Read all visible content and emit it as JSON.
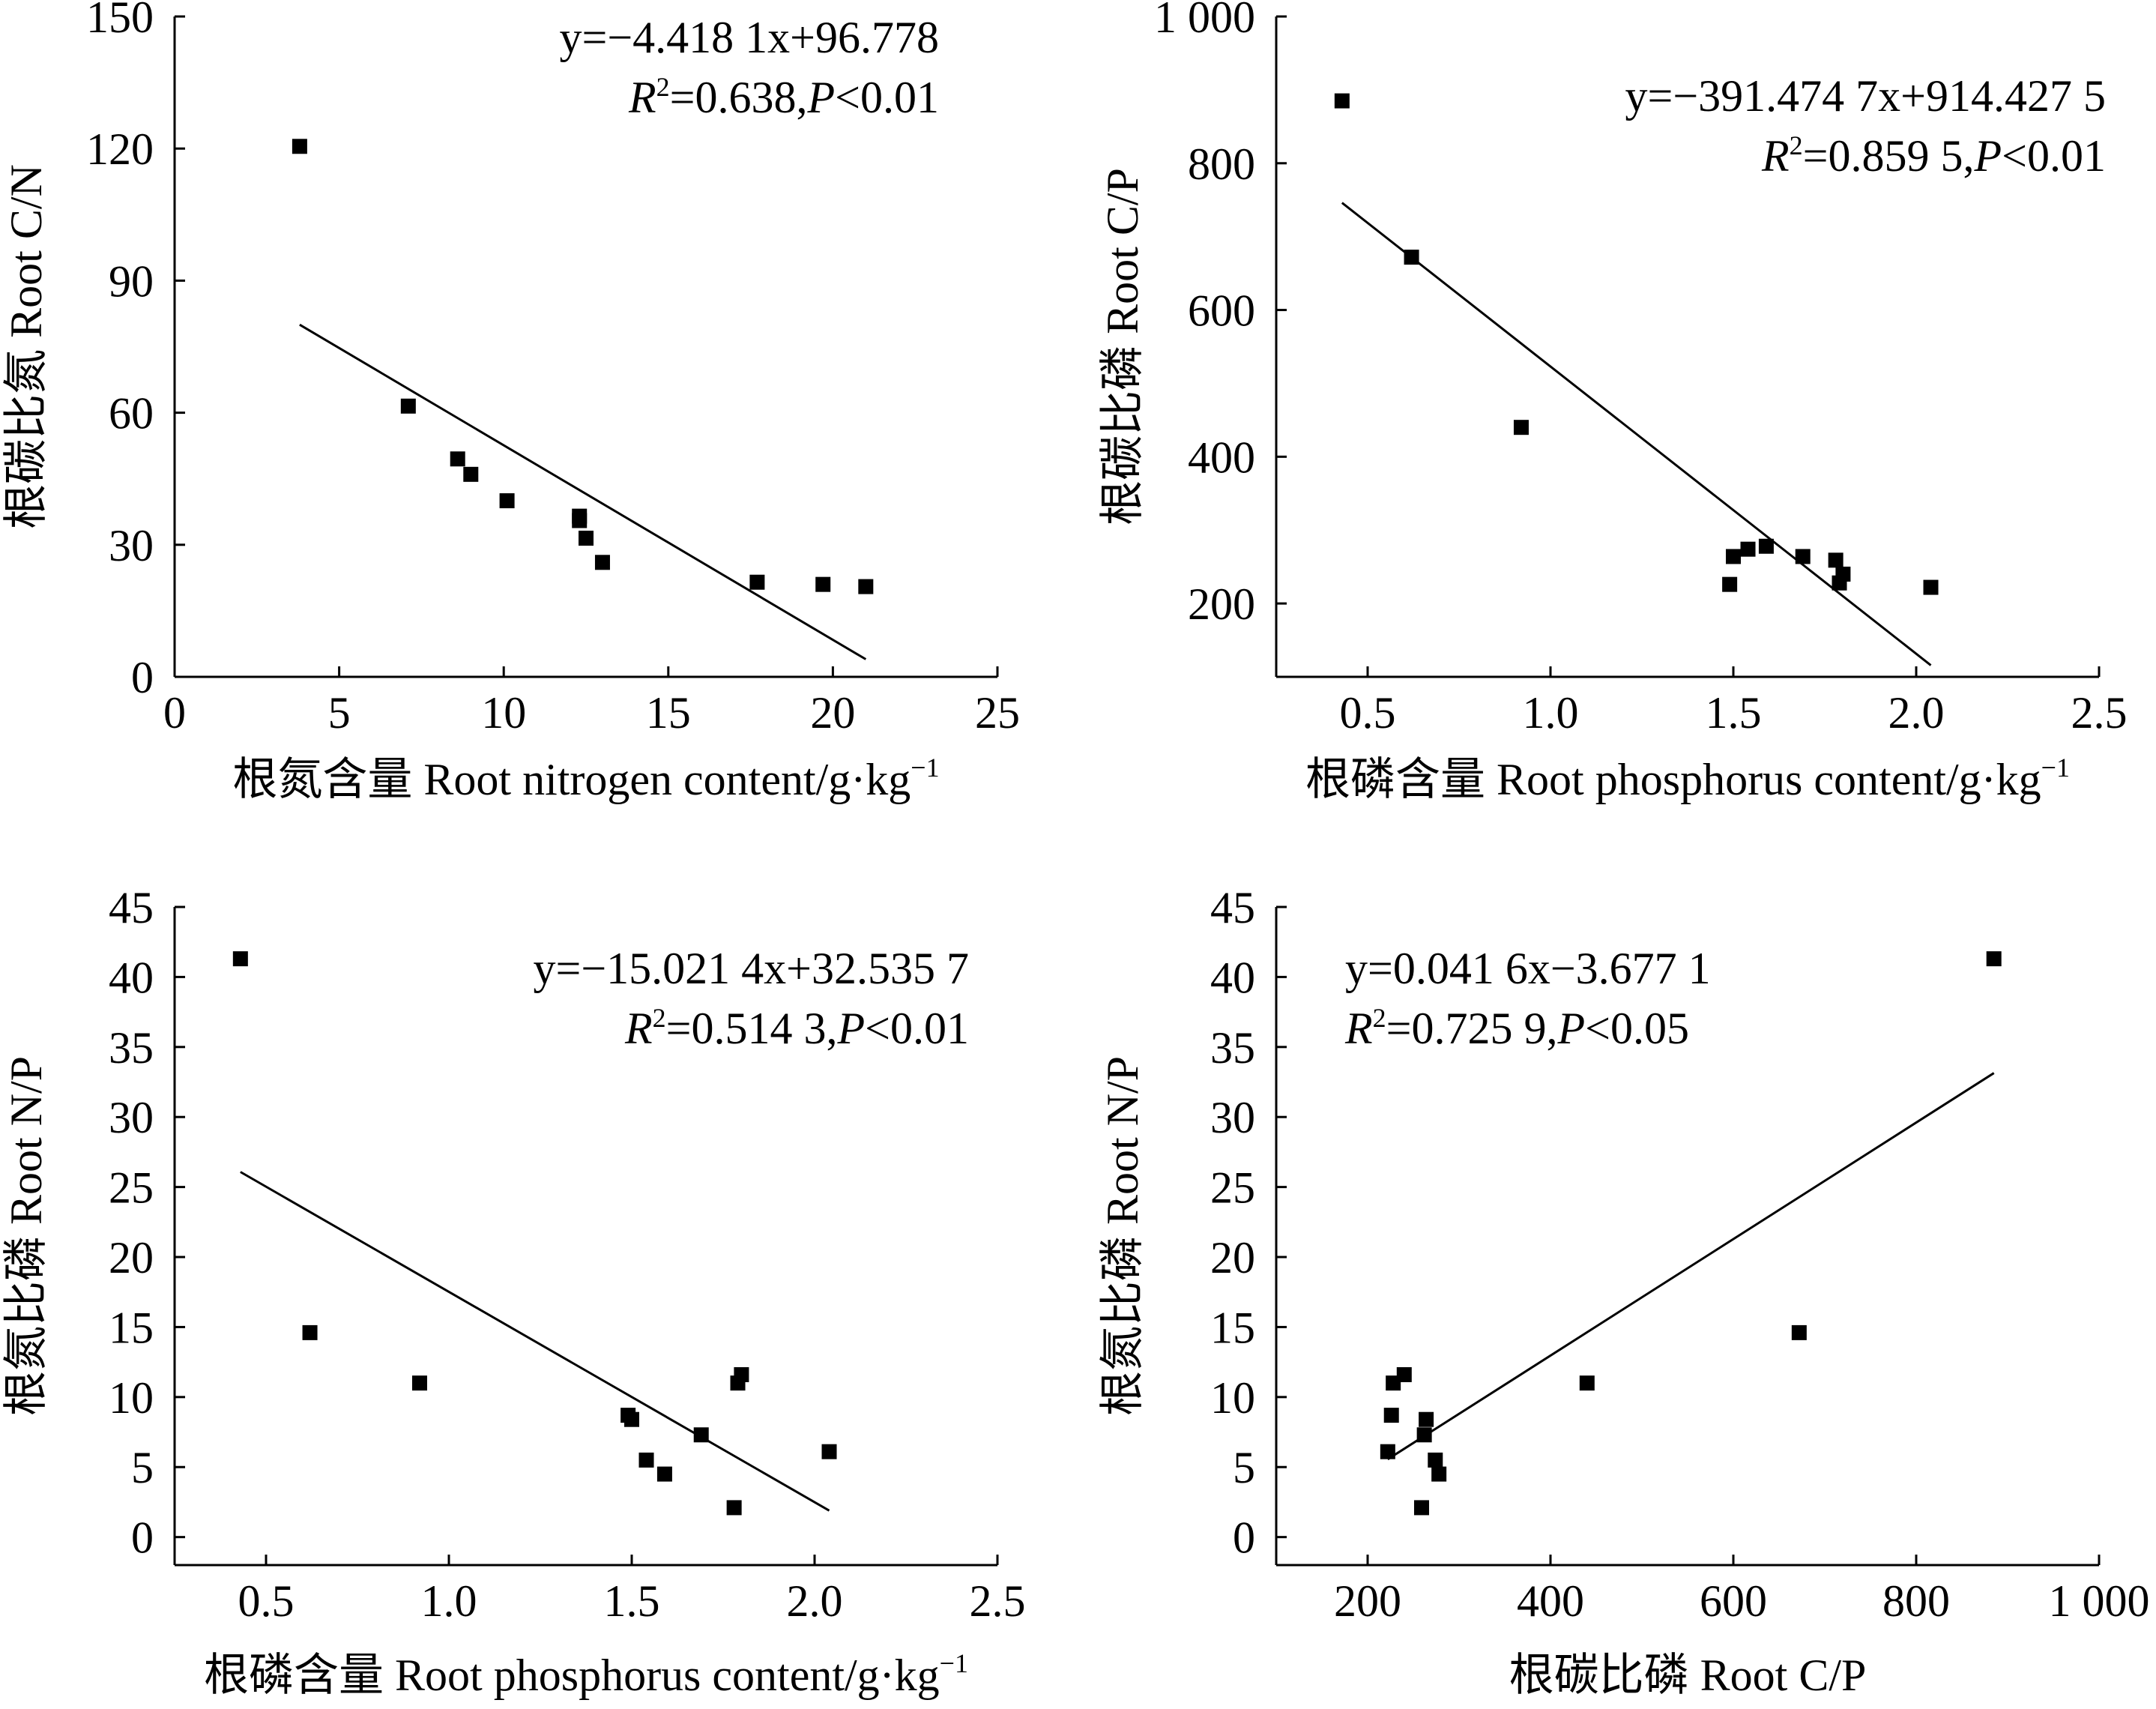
{
  "chart_data": [
    {
      "type": "scatter",
      "id": "cn",
      "xlabel": "根氮含量 Root nitrogen content/g·kg",
      "xlabel_sup": "−1",
      "ylabel": "根碳比氮 Root C/N",
      "xlim": [
        0,
        25
      ],
      "ylim": [
        0,
        150
      ],
      "xticks": [
        0,
        5,
        10,
        15,
        20,
        25
      ],
      "yticks": [
        0,
        30,
        60,
        90,
        120,
        150
      ],
      "xtick_labels": [
        "0",
        "5",
        "10",
        "15",
        "20",
        "25"
      ],
      "ytick_labels": [
        "0",
        "30",
        "60",
        "90",
        "120",
        "150"
      ],
      "points": [
        [
          3.8,
          120.5
        ],
        [
          7.1,
          61.5
        ],
        [
          8.6,
          49.5
        ],
        [
          9.0,
          46.0
        ],
        [
          10.1,
          40.0
        ],
        [
          12.3,
          36.5
        ],
        [
          12.3,
          35.5
        ],
        [
          12.5,
          31.5
        ],
        [
          13.0,
          26.0
        ],
        [
          17.7,
          21.5
        ],
        [
          19.7,
          21.0
        ],
        [
          21.0,
          20.5
        ]
      ],
      "fit": {
        "x": [
          3.8,
          21.0
        ],
        "slope": -4.4181,
        "intercept": 96.778
      },
      "equation": "y=−4.418 1x+96.778",
      "r2_symbol": "R",
      "r2_sup": "2",
      "r2_value": "=0.638,",
      "p_symbol": "P",
      "p_value": "<0.01",
      "eq_align": "right"
    },
    {
      "type": "scatter",
      "id": "cp",
      "xlabel": "根磷含量 Root phosphorus content/g·kg",
      "xlabel_sup": "−1",
      "ylabel": "根碳比磷 Root C/P",
      "xlim": [
        0.25,
        2.5
      ],
      "ylim": [
        100,
        1000
      ],
      "xticks": [
        0.5,
        1.0,
        1.5,
        2.0,
        2.5
      ],
      "yticks": [
        200,
        400,
        600,
        800,
        1000
      ],
      "xtick_labels": [
        "0.5",
        "1.0",
        "1.5",
        "2.0",
        "2.5"
      ],
      "ytick_labels": [
        "200",
        "400",
        "600",
        "800",
        "1 000"
      ],
      "points": [
        [
          0.43,
          885
        ],
        [
          0.62,
          672
        ],
        [
          0.92,
          440
        ],
        [
          1.49,
          226
        ],
        [
          1.5,
          264
        ],
        [
          1.54,
          274
        ],
        [
          1.59,
          278
        ],
        [
          1.69,
          264
        ],
        [
          1.78,
          259
        ],
        [
          1.79,
          228
        ],
        [
          1.8,
          240
        ],
        [
          2.04,
          222
        ]
      ],
      "fit": {
        "x": [
          0.43,
          2.04
        ],
        "slope": -391.4747,
        "intercept": 914.4275
      },
      "equation": "y=−391.474 7x+914.427 5",
      "r2_symbol": "R",
      "r2_sup": "2",
      "r2_value": "=0.859 5,",
      "p_symbol": "P",
      "p_value": "<0.01",
      "eq_align": "right"
    },
    {
      "type": "scatter",
      "id": "np1",
      "xlabel": "根磷含量 Root phosphorus content/g·kg",
      "xlabel_sup": "−1",
      "ylabel": "根氮比磷 Root N/P",
      "xlim": [
        0.25,
        2.5
      ],
      "ylim": [
        -2,
        45
      ],
      "xticks": [
        0.5,
        1.0,
        1.5,
        2.0,
        2.5
      ],
      "yticks": [
        0,
        5,
        10,
        15,
        20,
        25,
        30,
        35,
        40,
        45
      ],
      "xtick_labels": [
        "0.5",
        "1.0",
        "1.5",
        "2.0",
        "2.5"
      ],
      "ytick_labels": [
        "0",
        "5",
        "10",
        "15",
        "20",
        "25",
        "30",
        "35",
        "40",
        "45"
      ],
      "points": [
        [
          0.43,
          41.3
        ],
        [
          0.62,
          14.6
        ],
        [
          0.92,
          11.0
        ],
        [
          1.49,
          8.7
        ],
        [
          1.5,
          8.4
        ],
        [
          1.54,
          5.5
        ],
        [
          1.59,
          4.5
        ],
        [
          1.69,
          7.3
        ],
        [
          1.78,
          2.1
        ],
        [
          1.79,
          11.0
        ],
        [
          1.8,
          11.6
        ],
        [
          2.04,
          6.1
        ]
      ],
      "fit": {
        "x": [
          0.43,
          2.04
        ],
        "slope": -15.0214,
        "intercept": 32.5357
      },
      "equation": "y=−15.021 4x+32.535 7",
      "r2_symbol": "R",
      "r2_sup": "2",
      "r2_value": "=0.514 3,",
      "p_symbol": "P",
      "p_value": "<0.01",
      "eq_align": "right"
    },
    {
      "type": "scatter",
      "id": "np2",
      "xlabel": "根碳比磷 Root C/P",
      "xlabel_sup": "",
      "ylabel": "根氮比磷 Root N/P",
      "xlim": [
        100,
        1000
      ],
      "ylim": [
        -2,
        45
      ],
      "xticks": [
        200,
        400,
        600,
        800,
        1000
      ],
      "yticks": [
        0,
        5,
        10,
        15,
        20,
        25,
        30,
        35,
        40,
        45
      ],
      "xtick_labels": [
        "200",
        "400",
        "600",
        "800",
        "1 000"
      ],
      "ytick_labels": [
        "0",
        "5",
        "10",
        "15",
        "20",
        "25",
        "30",
        "35",
        "40",
        "45"
      ],
      "points": [
        [
          222,
          6.1
        ],
        [
          226,
          8.7
        ],
        [
          228,
          11.0
        ],
        [
          240,
          11.6
        ],
        [
          259,
          2.1
        ],
        [
          262,
          7.3
        ],
        [
          264,
          8.4
        ],
        [
          274,
          5.5
        ],
        [
          278,
          4.5
        ],
        [
          440,
          11.0
        ],
        [
          672,
          14.6
        ],
        [
          885,
          41.3
        ]
      ],
      "fit": {
        "x": [
          222,
          885
        ],
        "slope": 0.0416,
        "intercept": -3.6771
      },
      "equation": "y=0.041 6x−3.677 1",
      "r2_symbol": "R",
      "r2_sup": "2",
      "r2_value": "=0.725 9,",
      "p_symbol": "P",
      "p_value": "<0.05",
      "eq_align": "left"
    }
  ]
}
